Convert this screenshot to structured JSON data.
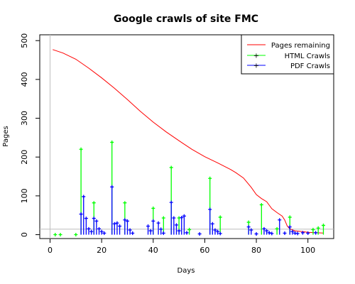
{
  "chart_data": {
    "type": "line",
    "title": "Google crawls of site FMC",
    "xlabel": "Days",
    "ylabel": "Pages",
    "xlim": [
      -4,
      110
    ],
    "ylim": [
      -10,
      515
    ],
    "x_ticks": [
      0,
      20,
      40,
      60,
      80,
      100
    ],
    "y_ticks": [
      0,
      100,
      200,
      300,
      400,
      500
    ],
    "grid": false,
    "legend_position": "top-right",
    "series": [
      {
        "name": "Pages remaining",
        "style": "line",
        "color": "#ff0000",
        "points": [
          [
            1,
            477
          ],
          [
            5,
            468
          ],
          [
            10,
            452
          ],
          [
            15,
            429
          ],
          [
            20,
            404
          ],
          [
            25,
            377
          ],
          [
            30,
            348
          ],
          [
            35,
            318
          ],
          [
            40,
            290
          ],
          [
            45,
            265
          ],
          [
            50,
            242
          ],
          [
            55,
            220
          ],
          [
            60,
            201
          ],
          [
            65,
            185
          ],
          [
            70,
            168
          ],
          [
            72,
            160
          ],
          [
            75,
            146
          ],
          [
            78,
            122
          ],
          [
            80,
            103
          ],
          [
            82,
            93
          ],
          [
            84,
            85
          ],
          [
            86,
            67
          ],
          [
            88,
            57
          ],
          [
            90,
            48
          ],
          [
            91,
            38
          ],
          [
            92,
            22
          ],
          [
            93,
            15
          ],
          [
            95,
            10
          ],
          [
            98,
            8
          ],
          [
            100,
            6
          ],
          [
            103,
            5
          ],
          [
            106,
            4
          ]
        ]
      },
      {
        "name": "HTML Crawls",
        "style": "stem",
        "color": "#00ff00",
        "points": [
          [
            2,
            0
          ],
          [
            4,
            0
          ],
          [
            10,
            0
          ],
          [
            12,
            220
          ],
          [
            17,
            82
          ],
          [
            24,
            238
          ],
          [
            29,
            82
          ],
          [
            40,
            68
          ],
          [
            44,
            43
          ],
          [
            47,
            173
          ],
          [
            50,
            43
          ],
          [
            54,
            13
          ],
          [
            62,
            145
          ],
          [
            66,
            45
          ],
          [
            77,
            32
          ],
          [
            82,
            77
          ],
          [
            88,
            15
          ],
          [
            93,
            45
          ],
          [
            102,
            13
          ],
          [
            104,
            17
          ],
          [
            106,
            24
          ]
        ]
      },
      {
        "name": "PDF Crawls",
        "style": "stem",
        "color": "#0000ff",
        "points": [
          [
            12,
            53
          ],
          [
            13,
            98
          ],
          [
            14,
            42
          ],
          [
            15,
            15
          ],
          [
            16,
            8
          ],
          [
            17,
            42
          ],
          [
            18,
            35
          ],
          [
            19,
            15
          ],
          [
            20,
            8
          ],
          [
            21,
            4
          ],
          [
            24,
            123
          ],
          [
            25,
            28
          ],
          [
            26,
            30
          ],
          [
            27,
            22
          ],
          [
            29,
            38
          ],
          [
            30,
            35
          ],
          [
            31,
            12
          ],
          [
            32,
            4
          ],
          [
            38,
            22
          ],
          [
            39,
            10
          ],
          [
            40,
            35
          ],
          [
            42,
            30
          ],
          [
            43,
            14
          ],
          [
            44,
            4
          ],
          [
            47,
            83
          ],
          [
            48,
            43
          ],
          [
            49,
            25
          ],
          [
            50,
            10
          ],
          [
            51,
            44
          ],
          [
            52,
            48
          ],
          [
            53,
            5
          ],
          [
            58,
            2
          ],
          [
            62,
            65
          ],
          [
            63,
            28
          ],
          [
            64,
            12
          ],
          [
            65,
            8
          ],
          [
            66,
            3
          ],
          [
            77,
            20
          ],
          [
            78,
            12
          ],
          [
            80,
            2
          ],
          [
            83,
            15
          ],
          [
            84,
            10
          ],
          [
            85,
            5
          ],
          [
            86,
            3
          ],
          [
            89,
            38
          ],
          [
            91,
            4
          ],
          [
            93,
            20
          ],
          [
            94,
            8
          ],
          [
            95,
            4
          ],
          [
            96,
            3
          ],
          [
            98,
            5
          ],
          [
            100,
            4
          ],
          [
            103,
            5
          ]
        ]
      }
    ]
  }
}
